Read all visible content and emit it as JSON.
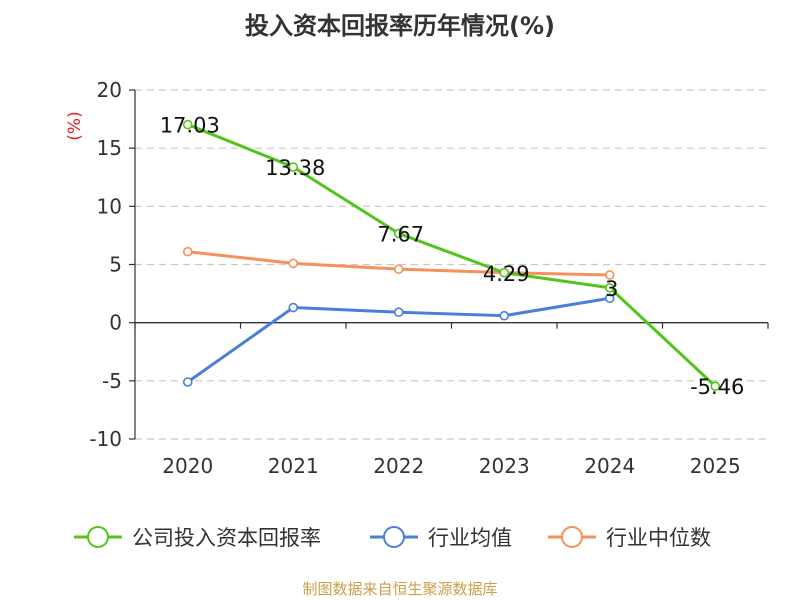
{
  "source_note": "制图数据来自恒生聚源数据库",
  "chart_data": {
    "type": "line",
    "title": "投入资本回报率历年情况(%)",
    "ylabel": "(%)",
    "xlabel": "",
    "categories": [
      "2020",
      "2021",
      "2022",
      "2023",
      "2024",
      "2025"
    ],
    "ylim": [
      -10,
      20
    ],
    "yticks": [
      "20",
      "15",
      "10",
      "5",
      "0",
      "-5",
      "-10"
    ],
    "grid": true,
    "legend_position": "bottom",
    "series": [
      {
        "name": "公司投入资本回报率",
        "color": "#52c41a",
        "values": [
          17.03,
          13.38,
          7.67,
          4.29,
          3,
          -5.46
        ],
        "labels": [
          "17.03",
          "13.38",
          "7.67",
          "4.29",
          "3",
          "-5.46"
        ]
      },
      {
        "name": "行业均值",
        "color": "#4a7fd9",
        "values": [
          -5.1,
          1.3,
          0.9,
          0.6,
          2.1,
          null
        ]
      },
      {
        "name": "行业中位数",
        "color": "#f5915c",
        "values": [
          6.1,
          5.1,
          4.6,
          4.3,
          4.1,
          null
        ]
      }
    ]
  }
}
